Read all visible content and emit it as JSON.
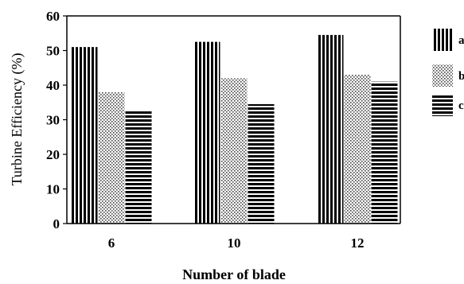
{
  "chart_data": {
    "type": "bar",
    "title": "",
    "xlabel": "Number of blade",
    "ylabel": "Turbine Efficiency (%)",
    "categories": [
      "6",
      "10",
      "12"
    ],
    "ylim": [
      0,
      60
    ],
    "yticks": [
      "0",
      "10",
      "20",
      "30",
      "40",
      "50",
      "60"
    ],
    "grid": false,
    "legend_position": "right (clipped)",
    "series": [
      {
        "name": "a",
        "pattern": "vertical-stripes",
        "values": [
          51,
          52.5,
          54.5
        ]
      },
      {
        "name": "b",
        "pattern": "dots",
        "values": [
          38,
          42,
          43
        ]
      },
      {
        "name": "c",
        "pattern": "horizontal-stripes",
        "values": [
          32.5,
          34.5,
          41
        ]
      }
    ]
  }
}
